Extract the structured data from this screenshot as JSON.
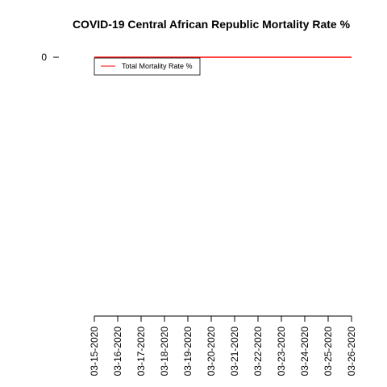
{
  "chart_data": {
    "type": "line",
    "title": "COVID-19 Central African Republic Mortality Rate %",
    "categories": [
      "03-15-2020",
      "03-16-2020",
      "03-17-2020",
      "03-18-2020",
      "03-19-2020",
      "03-20-2020",
      "03-21-2020",
      "03-22-2020",
      "03-23-2020",
      "03-24-2020",
      "03-25-2020",
      "03-26-2020"
    ],
    "series": [
      {
        "name": "Total Mortality Rate %",
        "color": "#ff0000",
        "values": [
          0,
          0,
          0,
          0,
          0,
          0,
          0,
          0,
          0,
          0,
          0,
          0
        ]
      }
    ],
    "ylim": [
      -1,
      0
    ],
    "yticks": [
      0
    ],
    "legend": "top-left"
  }
}
